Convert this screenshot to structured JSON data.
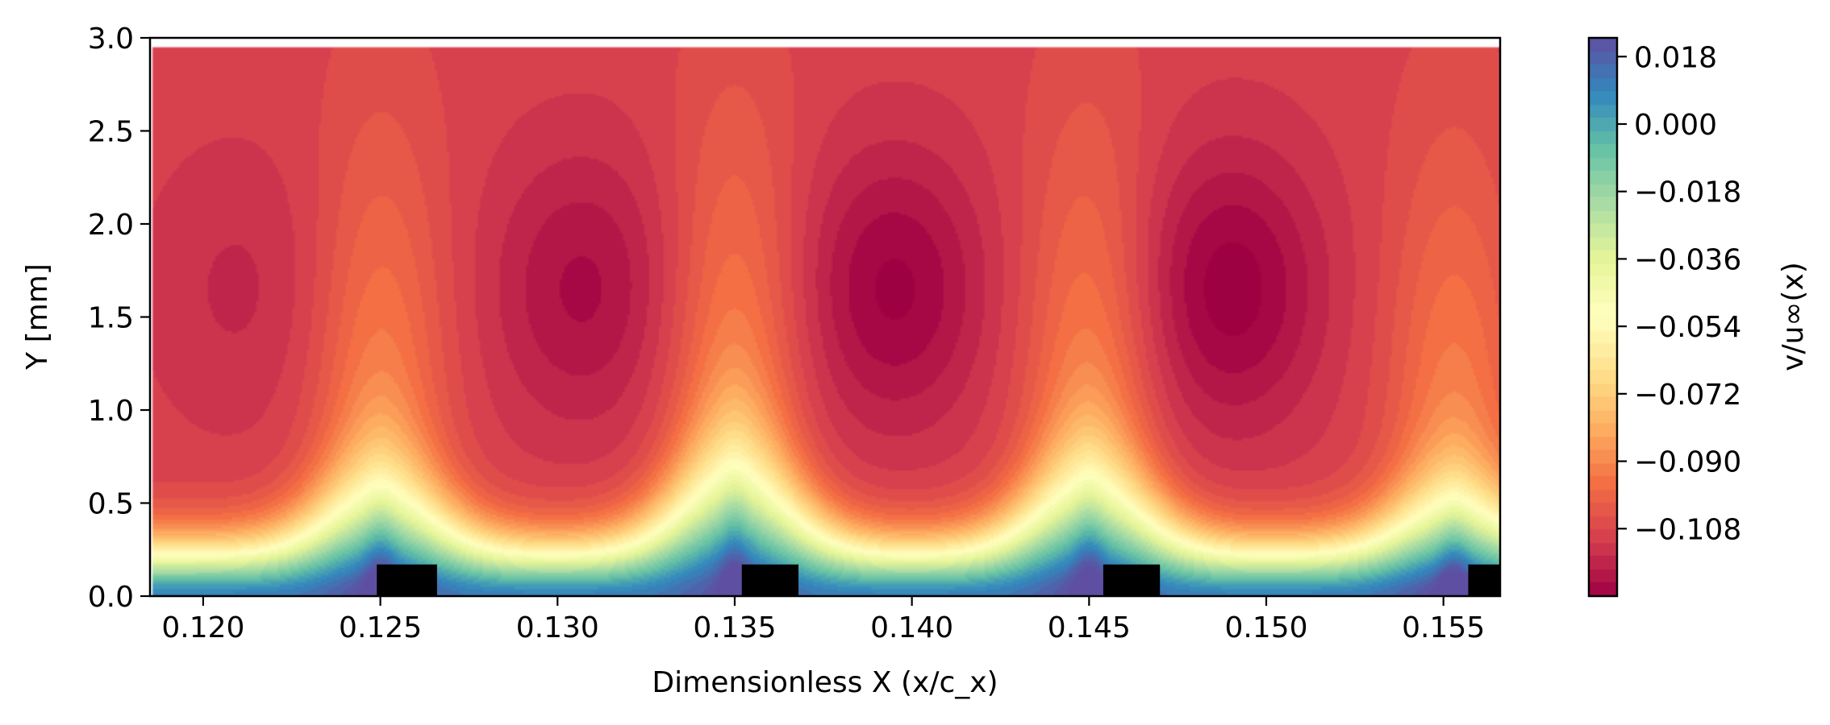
{
  "chart_data": {
    "type": "heatmap",
    "subtype": "filled-contour",
    "title": "",
    "xlabel": "Dimensionless X (x/c_x)",
    "ylabel": "Y [mm]",
    "xlim": [
      0.1185,
      0.1566
    ],
    "ylim": [
      0.0,
      3.0
    ],
    "x_data_extent": [
      0.1186,
      0.1566
    ],
    "y_data_extent": [
      0.0,
      2.95
    ],
    "xticks": [
      0.12,
      0.125,
      0.13,
      0.135,
      0.14,
      0.145,
      0.15,
      0.155
    ],
    "xtick_labels": [
      "0.120",
      "0.125",
      "0.130",
      "0.135",
      "0.140",
      "0.145",
      "0.150",
      "0.155"
    ],
    "yticks": [
      0.0,
      0.5,
      1.0,
      1.5,
      2.0,
      2.5,
      3.0
    ],
    "ytick_labels": [
      "0.0",
      "0.5",
      "1.0",
      "1.5",
      "2.0",
      "2.5",
      "3.0"
    ],
    "grid": false,
    "colormap": "Spectral",
    "colorbar": {
      "label": "v/u∞(x)",
      "range": [
        -0.126,
        0.023
      ],
      "ticks": [
        0.018,
        0.0,
        -0.018,
        -0.036,
        -0.054,
        -0.072,
        -0.09,
        -0.108
      ],
      "tick_labels": [
        "0.018",
        "0.000",
        "−0.018",
        "−0.036",
        "−0.054",
        "−0.072",
        "−0.090",
        "−0.108"
      ]
    },
    "field_features": {
      "near_wall_value": 0.01,
      "freestream_value": -0.11,
      "upwash_crests": [
        {
          "x": 0.125,
          "height_mm": 0.85
        },
        {
          "x": 0.135,
          "height_mm": 1.0
        },
        {
          "x": 0.145,
          "height_mm": 0.92
        },
        {
          "x": 0.1553,
          "height_mm": 0.75
        }
      ],
      "downwash_troughs": [
        {
          "x": 0.121,
          "min_value": -0.115
        },
        {
          "x": 0.1307,
          "min_value": -0.121
        },
        {
          "x": 0.1395,
          "min_value": -0.124
        },
        {
          "x": 0.149,
          "min_value": -0.125
        }
      ]
    },
    "roughness_elements": [
      {
        "x_start": 0.1249,
        "x_end": 0.1266,
        "height_mm": 0.17
      },
      {
        "x_start": 0.1352,
        "x_end": 0.1368,
        "height_mm": 0.17
      },
      {
        "x_start": 0.1454,
        "x_end": 0.147,
        "height_mm": 0.17
      },
      {
        "x_start": 0.1557,
        "x_end": 0.1566,
        "height_mm": 0.17
      }
    ],
    "legend": "colorbar-right",
    "colors": {
      "roughness": "#000000",
      "axis": "#000000"
    }
  }
}
